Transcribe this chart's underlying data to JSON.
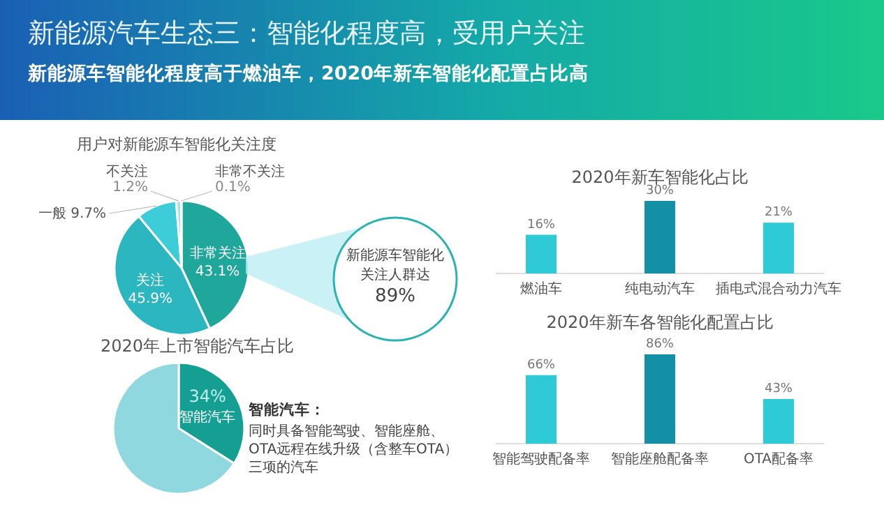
{
  "chart_data": [
    {
      "type": "other",
      "title": "新能源汽车生态三：智能化程度高，受用户关注",
      "subtitle": "新能源车智能化程度高于燃油车，2020年新车智能化配置占比高"
    },
    {
      "type": "pie",
      "title": "用户对新能源车智能化关注度",
      "categories": [
        "非常关注",
        "关注",
        "一般",
        "不关注",
        "非常不关注"
      ],
      "values": [
        43.1,
        45.9,
        9.7,
        1.2,
        0.1
      ],
      "colors": [
        "#1fa79c",
        "#2cb6bf",
        "#3ccdd8",
        "#a6e3e8",
        "#cfeff2"
      ],
      "data_labels": true,
      "value_labels": [
        "43.1%",
        "45.9%",
        "9.7%",
        "1.2%",
        "0.1%"
      ],
      "annotations": [
        "新能源车智能化关注人群达89%"
      ]
    },
    {
      "type": "pie",
      "title": "2020年上市智能汽车占比",
      "categories": [
        "智能汽车",
        null
      ],
      "values": [
        34,
        66
      ],
      "colors": [
        "#159f93",
        "#8fd8e0"
      ],
      "data_labels": true,
      "value_labels": [
        "34%",
        null
      ],
      "annotations": [
        "智能汽车：",
        "同时具备智能驾驶、智能座舱、OTA远程在线升级（含整车OTA）三项的汽车"
      ]
    },
    {
      "type": "bar",
      "title": "2020年新车智能化占比",
      "categories": [
        "燃油车",
        "纯电动汽车",
        "插电式混合动力汽车"
      ],
      "values": [
        16,
        30,
        21
      ],
      "colors": [
        "#2ecbd6",
        "#1490a6",
        "#2ecbd6"
      ],
      "data_labels": true,
      "value_labels": [
        "16%",
        "30%",
        "21%"
      ]
    },
    {
      "type": "bar",
      "title": "2020年新车各智能化配置占比",
      "categories": [
        "智能驾驶配备率",
        "智能座舱配备率",
        "OTA配备率"
      ],
      "values": [
        66,
        86,
        43
      ],
      "colors": [
        "#2ecbd6",
        "#1490a6",
        "#2ecbd6"
      ],
      "data_labels": true,
      "value_labels": [
        "66%",
        "86%",
        "43%"
      ]
    }
  ]
}
